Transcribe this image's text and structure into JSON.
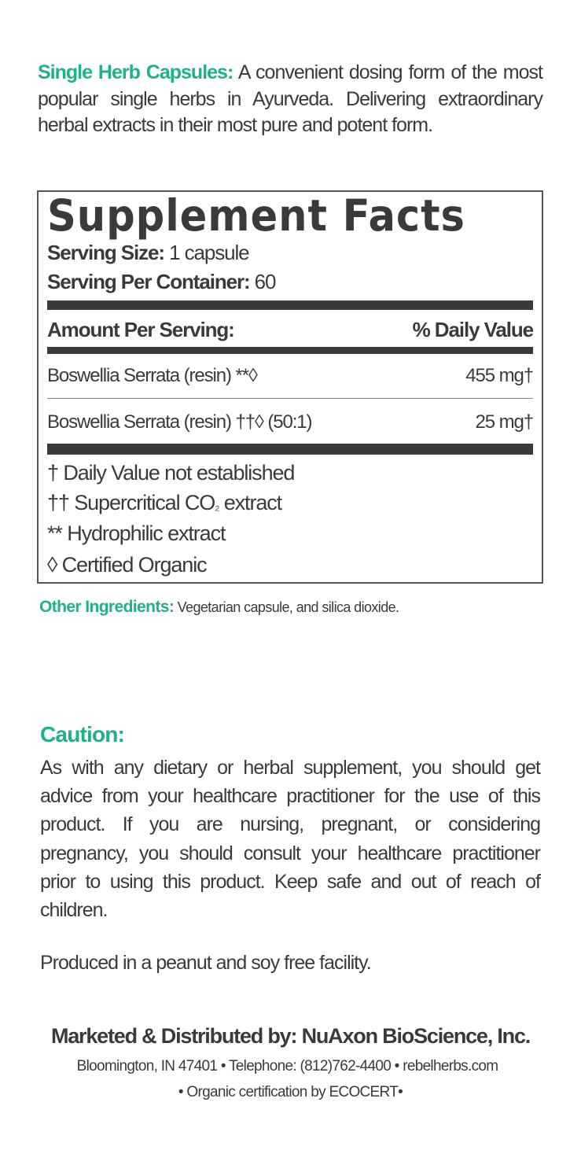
{
  "intro": {
    "heading": "Single Herb Capsules:",
    "text": " A convenient dosing form of the most popular single herbs in Ayurveda. Delivering extraordinary herbal extracts in their most pure and potent form."
  },
  "facts": {
    "title": "Supplement Facts",
    "serving_size_label": "Serving Size:",
    "serving_size_value": " 1 capsule",
    "servings_label": "Serving Per Container:",
    "servings_value": " 60",
    "amount_header": "Amount Per Serving:",
    "dv_header": "% Daily Value",
    "rows": [
      {
        "name": "Boswellia Serrata (resin) **◊",
        "amount": "455 mg†"
      },
      {
        "name": "Boswellia Serrata (resin) ††◊ (50:1)",
        "amount": "25 mg†"
      }
    ],
    "footnotes": [
      "† Daily Value not established",
      "†† Supercritical CO",
      "₂",
      " extract",
      "** Hydrophilic extract",
      "◊ Certified Organic"
    ]
  },
  "other": {
    "label": "Other Ingredients:",
    "text": " Vegetarian capsule, and silica dioxide."
  },
  "caution": {
    "heading": "Caution:",
    "text": "As with any dietary or herbal supplement, you should get advice from your healthcare practitioner for the use of this product. If you are nursing, pregnant, or considering pregnancy, you should consult your healthcare practitioner prior to using this product. Keep safe and out of reach of children."
  },
  "produced": "Produced in a peanut and soy free facility.",
  "footer": {
    "marketed": "Marketed & Distributed by: NuAxon BioScience, Inc.",
    "address": "Bloomington, IN 47401 • Telephone: (812)762-4400 • rebelherbs.com",
    "cert": "• Organic certification by ECOCERT•"
  },
  "colors": {
    "accent": "#1db38a",
    "text": "#3a3a3c"
  }
}
